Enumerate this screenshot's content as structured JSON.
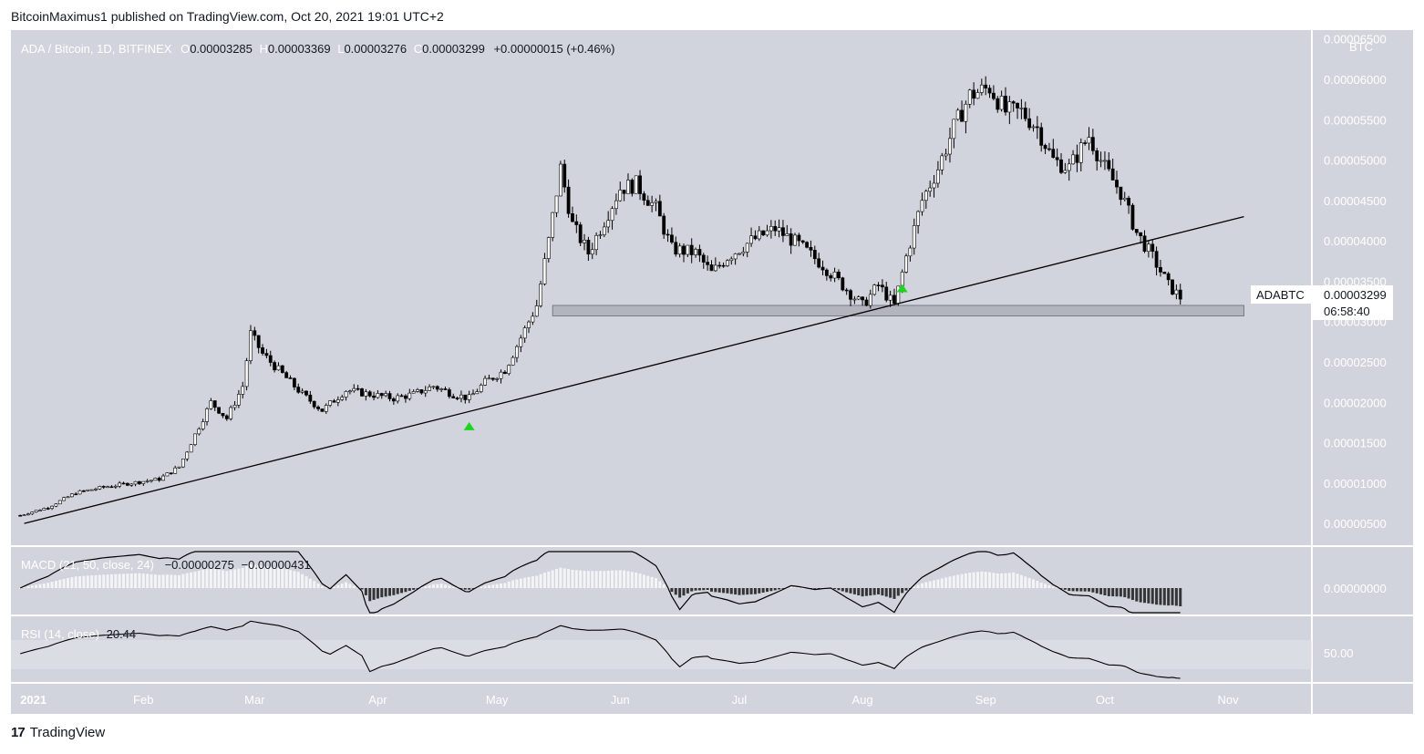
{
  "header": {
    "publisher": "BitcoinMaximus1 published on TradingView.com, Oct 20, 2021 19:01 UTC+2"
  },
  "footer": {
    "brand": "TradingView",
    "logo": "tradingview-logo-icon"
  },
  "legend": {
    "symbol": "ADA / Bitcoin, 1D, BITFINEX",
    "o_label": "O",
    "o": "0.00003285",
    "h_label": "H",
    "h": "0.00003369",
    "l_label": "L",
    "l": "0.00003276",
    "c_label": "C",
    "c": "0.00003299",
    "change": "+0.00000015 (+0.46%)"
  },
  "price_tag": {
    "name": "ADABTC",
    "value": "0.00003299",
    "countdown": "06:58:40"
  },
  "macd": {
    "label": "MACD (21, 50, close, 24)",
    "v1": "−0.00000275",
    "v2": "−0.00000431",
    "axis_label": "0.00000000"
  },
  "rsi": {
    "label": "RSI (14, close)",
    "value": "20.44",
    "axis_label": "50.00"
  },
  "colors": {
    "background": "#d1d4dc",
    "candle": "#000000",
    "marker": "#1ed51e",
    "zone": "#b2b5be"
  },
  "chart_data": {
    "type": "candlestick",
    "unit": "BTC",
    "y_ticks": [
      "0.00006500",
      "0.00006000",
      "0.00005500",
      "0.00005000",
      "0.00004500",
      "0.00004000",
      "0.00003500",
      "0.00003000",
      "0.00002500",
      "0.00002000",
      "0.00001500",
      "0.00001000",
      "0.00000500"
    ],
    "x_ticks": [
      "2021",
      "Feb",
      "Mar",
      "Apr",
      "May",
      "Jun",
      "Jul",
      "Aug",
      "Sep",
      "Oct",
      "Nov"
    ],
    "ylim": [
      2.3e-06,
      6.61e-05
    ],
    "trendline": {
      "from": [
        "2021-01-02",
        5e-06
      ],
      "to": [
        "2021-11-05",
        4.3e-05
      ]
    },
    "support_zone": {
      "start": "2021-05-15",
      "end": "2021-11-05",
      "low": 3.07e-05,
      "high": 3.2e-05
    },
    "markers": [
      {
        "date": "2021-04-24",
        "type": "up-arrow"
      },
      {
        "date": "2021-08-11",
        "type": "up-arrow"
      }
    ],
    "closes": [
      [
        "2021-01-01",
        6e-06
      ],
      [
        "2021-01-08",
        7e-06
      ],
      [
        "2021-01-15",
        8.8e-06
      ],
      [
        "2021-01-22",
        9.5e-06
      ],
      [
        "2021-01-29",
        1e-05
      ],
      [
        "2021-02-05",
        1.05e-05
      ],
      [
        "2021-02-10",
        1.2e-05
      ],
      [
        "2021-02-14",
        1.6e-05
      ],
      [
        "2021-02-18",
        2e-05
      ],
      [
        "2021-02-22",
        1.8e-05
      ],
      [
        "2021-02-26",
        2.2e-05
      ],
      [
        "2021-02-28",
        2.85e-05
      ],
      [
        "2021-03-03",
        2.6e-05
      ],
      [
        "2021-03-08",
        2.35e-05
      ],
      [
        "2021-03-13",
        2.1e-05
      ],
      [
        "2021-03-18",
        1.9e-05
      ],
      [
        "2021-03-24",
        2.15e-05
      ],
      [
        "2021-03-30",
        2.1e-05
      ],
      [
        "2021-04-05",
        2.05e-05
      ],
      [
        "2021-04-10",
        2.1e-05
      ],
      [
        "2021-04-15",
        2.2e-05
      ],
      [
        "2021-04-20",
        2.1e-05
      ],
      [
        "2021-04-24",
        2.05e-05
      ],
      [
        "2021-04-28",
        2.25e-05
      ],
      [
        "2021-05-03",
        2.4e-05
      ],
      [
        "2021-05-07",
        2.8e-05
      ],
      [
        "2021-05-11",
        3.2e-05
      ],
      [
        "2021-05-14",
        4e-05
      ],
      [
        "2021-05-17",
        4.9e-05
      ],
      [
        "2021-05-20",
        4.2e-05
      ],
      [
        "2021-05-24",
        3.85e-05
      ],
      [
        "2021-05-28",
        4.25e-05
      ],
      [
        "2021-06-01",
        4.65e-05
      ],
      [
        "2021-06-05",
        4.7e-05
      ],
      [
        "2021-06-10",
        4.4e-05
      ],
      [
        "2021-06-14",
        3.9e-05
      ],
      [
        "2021-06-20",
        3.85e-05
      ],
      [
        "2021-06-24",
        3.6e-05
      ],
      [
        "2021-06-28",
        3.8e-05
      ],
      [
        "2021-07-04",
        4e-05
      ],
      [
        "2021-07-10",
        4.15e-05
      ],
      [
        "2021-07-16",
        3.95e-05
      ],
      [
        "2021-07-22",
        3.7e-05
      ],
      [
        "2021-07-28",
        3.4e-05
      ],
      [
        "2021-08-01",
        3.2e-05
      ],
      [
        "2021-08-05",
        3.45e-05
      ],
      [
        "2021-08-09",
        3.2e-05
      ],
      [
        "2021-08-12",
        3.8e-05
      ],
      [
        "2021-08-16",
        4.5e-05
      ],
      [
        "2021-08-20",
        4.9e-05
      ],
      [
        "2021-08-24",
        5.4e-05
      ],
      [
        "2021-08-28",
        5.8e-05
      ],
      [
        "2021-09-02",
        5.9e-05
      ],
      [
        "2021-09-06",
        5.6e-05
      ],
      [
        "2021-09-10",
        5.6e-05
      ],
      [
        "2021-09-14",
        5.4e-05
      ],
      [
        "2021-09-18",
        5e-05
      ],
      [
        "2021-09-22",
        4.9e-05
      ],
      [
        "2021-09-27",
        5.3e-05
      ],
      [
        "2021-10-01",
        4.9e-05
      ],
      [
        "2021-10-05",
        4.6e-05
      ],
      [
        "2021-10-09",
        4.1e-05
      ],
      [
        "2021-10-13",
        3.8e-05
      ],
      [
        "2021-10-17",
        3.45e-05
      ],
      [
        "2021-10-20",
        3.3e-05
      ]
    ]
  }
}
